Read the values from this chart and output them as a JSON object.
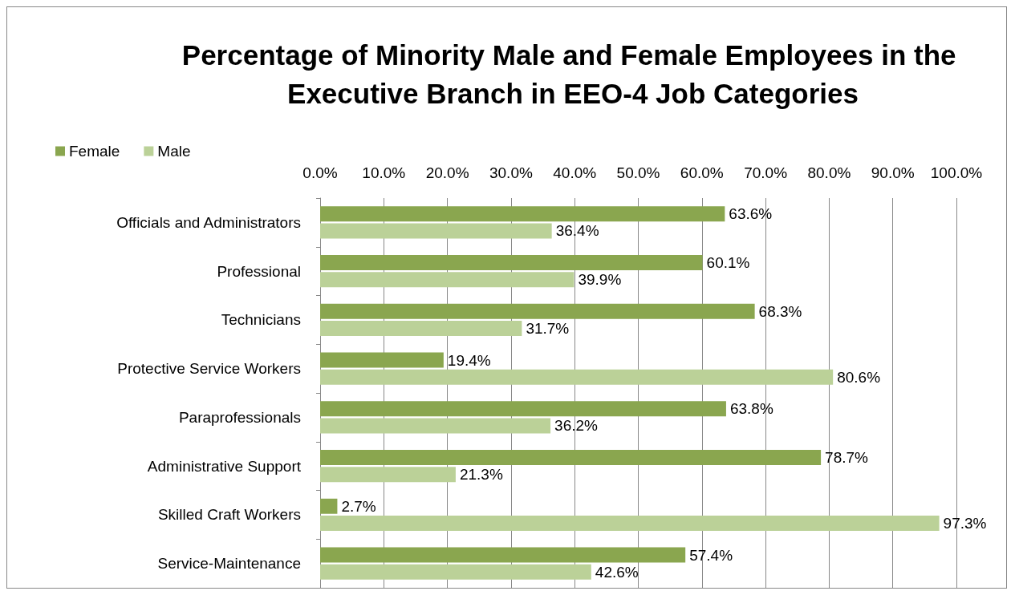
{
  "chart_data": {
    "type": "bar",
    "orientation": "horizontal",
    "title": "Percentage of Minority Male and Female Employees in the Executive Branch in EEO-4 Job Categories",
    "categories": [
      "Officials and Administrators",
      "Professional",
      "Technicians",
      "Protective Service Workers",
      "Paraprofessionals",
      "Administrative Support",
      "Skilled Craft Workers",
      "Service-Maintenance"
    ],
    "series": [
      {
        "name": "Female",
        "color": "#8aa64f",
        "values": [
          63.6,
          60.1,
          68.3,
          19.4,
          63.8,
          78.7,
          2.7,
          57.4
        ],
        "value_labels": [
          "63.6%",
          "60.1%",
          "68.3%",
          "19.4%",
          "63.8%",
          "78.7%",
          "2.7%",
          "57.4%"
        ]
      },
      {
        "name": "Male",
        "color": "#bbd198",
        "values": [
          36.4,
          39.9,
          31.7,
          80.6,
          36.2,
          21.3,
          97.3,
          42.6
        ],
        "value_labels": [
          "36.4%",
          "39.9%",
          "31.7%",
          "80.6%",
          "36.2%",
          "21.3%",
          "97.3%",
          "42.6%"
        ]
      }
    ],
    "xlim": [
      0,
      100
    ],
    "xticks": [
      {
        "value": 0,
        "label": "0.0%"
      },
      {
        "value": 10,
        "label": "10.0%"
      },
      {
        "value": 20,
        "label": "20.0%"
      },
      {
        "value": 30,
        "label": "30.0%"
      },
      {
        "value": 40,
        "label": "40.0%"
      },
      {
        "value": 50,
        "label": "50.0%"
      },
      {
        "value": 60,
        "label": "60.0%"
      },
      {
        "value": 70,
        "label": "70.0%"
      },
      {
        "value": 80,
        "label": "80.0%"
      },
      {
        "value": 90,
        "label": "90.0%"
      },
      {
        "value": 100,
        "label": "100.0%"
      }
    ],
    "grid": "x",
    "legend": "top left"
  }
}
